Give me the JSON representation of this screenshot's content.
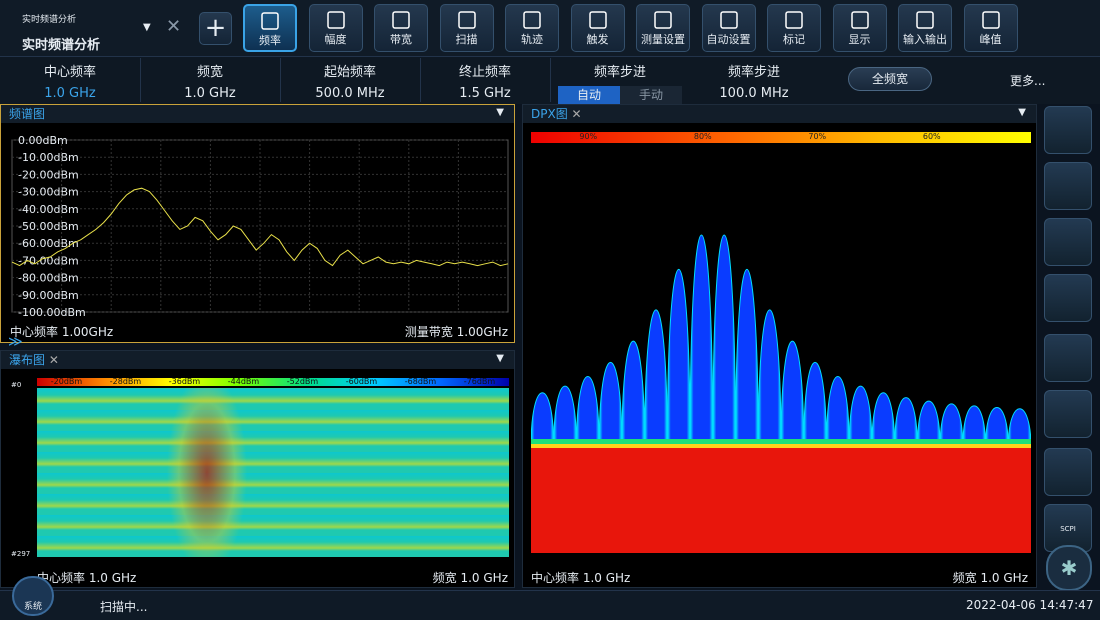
{
  "header": {
    "mode_label": "实时频谱分析",
    "mode_title": "实时频谱分析"
  },
  "toolbar": [
    "频率",
    "幅度",
    "带宽",
    "扫描",
    "轨迹",
    "触发",
    "测量设置",
    "自动设置",
    "标记",
    "显示",
    "输入输出",
    "峰值"
  ],
  "params": [
    {
      "label": "中心频率",
      "value": "1.0 GHz"
    },
    {
      "label": "频宽",
      "value": "1.0 GHz"
    },
    {
      "label": "起始频率",
      "value": "500.0 MHz"
    },
    {
      "label": "终止频率",
      "value": "1.5 GHz"
    }
  ],
  "step_mode": {
    "label": "频率步进",
    "options": [
      "自动",
      "手动"
    ]
  },
  "step_value": {
    "label": "频率步进",
    "value": "100.0 MHz"
  },
  "full_span": "全频宽",
  "more": "更多...",
  "spectrum": {
    "title": "频谱图",
    "ylim": [
      -100,
      0
    ],
    "yticks": [
      {
        "value": 0,
        "label": "0.00dBm"
      },
      {
        "value": -10,
        "label": "-10.00dBm"
      },
      {
        "value": -20,
        "label": "-20.00dBm"
      },
      {
        "value": -30,
        "label": "-30.00dBm"
      },
      {
        "value": -40,
        "label": "-40.00dBm"
      },
      {
        "value": -50,
        "label": "-50.00dBm"
      },
      {
        "value": -60,
        "label": "-60.00dBm"
      },
      {
        "value": -70,
        "label": "-70.00dBm"
      },
      {
        "value": -80,
        "label": "-80.00dBm"
      },
      {
        "value": -90,
        "label": "-90.00dBm"
      },
      {
        "value": -100,
        "label": "-100.00dBm"
      }
    ],
    "trace": [
      -71,
      -73,
      -70,
      -72,
      -69,
      -68,
      -65,
      -63,
      -60,
      -58,
      -55,
      -52,
      -48,
      -43,
      -37,
      -32,
      -29,
      -28,
      -30,
      -35,
      -41,
      -47,
      -52,
      -50,
      -45,
      -47,
      -53,
      -58,
      -55,
      -50,
      -52,
      -58,
      -64,
      -60,
      -55,
      -58,
      -65,
      -70,
      -64,
      -60,
      -63,
      -70,
      -73,
      -67,
      -64,
      -68,
      -72,
      -70,
      -68,
      -71,
      -72,
      -71,
      -72,
      -70,
      -71,
      -72,
      -73,
      -71,
      -72,
      -71,
      -72,
      -73,
      -72,
      -71,
      -73,
      -72
    ],
    "footer_left": "中心频率 1.00GHz",
    "footer_right": "测量带宽 1.00GHz"
  },
  "waterfall": {
    "title": "瀑布图",
    "scale": [
      "-20dBm",
      "-28dBm",
      "-36dBm",
      "-44dBm",
      "-52dBm",
      "-60dBm",
      "-68dBm",
      "-76dBm"
    ],
    "row_first": "#0",
    "row_last": "#297",
    "footer_left": "中心频率 1.0 GHz",
    "footer_right": "频宽 1.0 GHz"
  },
  "dpx": {
    "title": "DPX图",
    "scale": [
      "90%",
      "80%",
      "70%",
      "60%"
    ],
    "footer_left": "中心频率 1.0 GHz",
    "footer_right": "频宽 1.0 GHz"
  },
  "sidebar": {
    "scpi": "SCPI"
  },
  "status": {
    "system": "系统",
    "message": "扫描中...",
    "time": "2022-04-06 14:47:47"
  }
}
